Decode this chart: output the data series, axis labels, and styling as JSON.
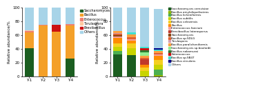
{
  "left": {
    "categories": [
      "Y-1",
      "Y-2",
      "Y-3",
      "Y-4"
    ],
    "series": [
      {
        "label": "Saccharomyces",
        "color": "#1b5e20",
        "values": [
          41,
          0,
          0,
          26
        ]
      },
      {
        "label": "Bacillus",
        "color": "#f4a029",
        "values": [
          23,
          74,
          65,
          48
        ]
      },
      {
        "label": "Enterococcus",
        "color": "#f08070",
        "values": [
          2,
          1,
          0,
          2
        ]
      },
      {
        "label": "Torulaspora",
        "color": "#ffc8a0",
        "values": [
          1,
          0,
          0,
          0
        ]
      },
      {
        "label": "Brevibacillus",
        "color": "#cc1111",
        "values": [
          0,
          0,
          10,
          0
        ]
      },
      {
        "label": "Others",
        "color": "#a8d4e8",
        "values": [
          33,
          25,
          25,
          24
        ]
      }
    ],
    "ylabel": "Relative abundance/%",
    "ylim": [
      0,
      100
    ],
    "yticks": [
      0,
      20,
      40,
      60,
      80,
      100
    ]
  },
  "right": {
    "categories": [
      "Y-1",
      "Y-2",
      "Y-3",
      "Y-4"
    ],
    "series": [
      {
        "label": "Saccharomyces cerevisiae",
        "color": "#1b5e20",
        "values": [
          32,
          31,
          0,
          0
        ]
      },
      {
        "label": "Bacillus amyloliquefaciens",
        "color": "#8db600",
        "values": [
          0,
          0,
          0,
          2
        ]
      },
      {
        "label": "Bacillus licheniformis",
        "color": "#4caf50",
        "values": [
          5,
          0,
          0,
          8
        ]
      },
      {
        "label": "Bacillus subtilis",
        "color": "#c8d400",
        "values": [
          6,
          10,
          8,
          7
        ]
      },
      {
        "label": "Bacillus velezensis",
        "color": "#f5d020",
        "values": [
          5,
          7,
          5,
          7
        ]
      },
      {
        "label": "Bacillus",
        "color": "#ff8c00",
        "values": [
          8,
          4,
          4,
          6
        ]
      },
      {
        "label": "Enterococcus faecium",
        "color": "#f4a0a0",
        "values": [
          2,
          2,
          0,
          2
        ]
      },
      {
        "label": "Brevibacillus laterosporus",
        "color": "#c0392b",
        "values": [
          0,
          0,
          8,
          0
        ]
      },
      {
        "label": "Saccharomyces",
        "color": "#8b4513",
        "values": [
          2,
          0,
          0,
          0
        ]
      },
      {
        "label": "Bacillus sp.SDLG",
        "color": "#e06030",
        "values": [
          2,
          3,
          2,
          2
        ]
      },
      {
        "label": "Torulaspora",
        "color": "#d4a0b0",
        "values": [
          1,
          0,
          0,
          0
        ]
      },
      {
        "label": "Bacillus paralicheniformis",
        "color": "#ffa040",
        "values": [
          3,
          4,
          3,
          3
        ]
      },
      {
        "label": "Saccharomyces sp.boulardii",
        "color": "#90ee90",
        "values": [
          0,
          0,
          5,
          0
        ]
      },
      {
        "label": "Bacillus nakamurai",
        "color": "#2e7d32",
        "values": [
          0,
          0,
          3,
          0
        ]
      },
      {
        "label": "Enterococcus",
        "color": "#cc1111",
        "values": [
          0,
          0,
          3,
          0
        ]
      },
      {
        "label": "Bacillus sp.SB47",
        "color": "#40e0d0",
        "values": [
          0,
          3,
          2,
          2
        ]
      },
      {
        "label": "Bacillus circulans",
        "color": "#00008b",
        "values": [
          0,
          0,
          0,
          2
        ]
      },
      {
        "label": "Others",
        "color": "#a8d4e8",
        "values": [
          34,
          36,
          57,
          57
        ]
      }
    ],
    "ylabel": "Relative abundance/%",
    "ylim": [
      0,
      100
    ],
    "yticks": [
      0,
      20,
      40,
      60,
      80,
      100
    ]
  },
  "figsize": [
    4.0,
    1.35
  ],
  "dpi": 100
}
